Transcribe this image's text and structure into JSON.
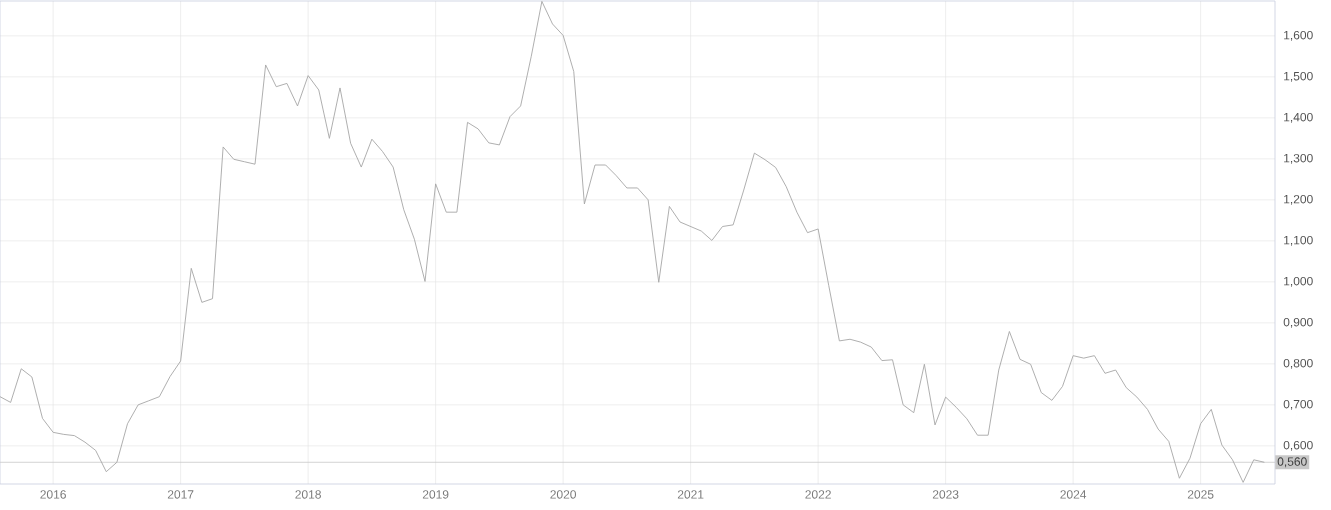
{
  "chart_data": {
    "type": "line",
    "x": [
      "2015-08",
      "2015-09",
      "2015-10",
      "2015-11",
      "2015-12",
      "2016-01",
      "2016-02",
      "2016-03",
      "2016-04",
      "2016-05",
      "2016-06",
      "2016-07",
      "2016-08",
      "2016-09",
      "2016-10",
      "2016-11",
      "2016-12",
      "2017-01",
      "2017-02",
      "2017-03",
      "2017-04",
      "2017-05",
      "2017-06",
      "2017-07",
      "2017-08",
      "2017-09",
      "2017-10",
      "2017-11",
      "2017-12",
      "2018-01",
      "2018-02",
      "2018-03",
      "2018-04",
      "2018-05",
      "2018-06",
      "2018-07",
      "2018-08",
      "2018-09",
      "2018-10",
      "2018-11",
      "2018-12",
      "2019-01",
      "2019-02",
      "2019-03",
      "2019-04",
      "2019-05",
      "2019-06",
      "2019-07",
      "2019-08",
      "2019-09",
      "2019-10",
      "2019-11",
      "2019-12",
      "2020-01",
      "2020-02",
      "2020-03",
      "2020-04",
      "2020-05",
      "2020-06",
      "2020-07",
      "2020-08",
      "2020-09",
      "2020-10",
      "2020-11",
      "2020-12",
      "2021-01",
      "2021-02",
      "2021-03",
      "2021-04",
      "2021-05",
      "2021-06",
      "2021-07",
      "2021-08",
      "2021-09",
      "2021-10",
      "2021-11",
      "2021-12",
      "2022-01",
      "2022-02",
      "2022-03",
      "2022-04",
      "2022-05",
      "2022-06",
      "2022-07",
      "2022-08",
      "2022-09",
      "2022-10",
      "2022-11",
      "2022-12",
      "2023-01",
      "2023-02",
      "2023-03",
      "2023-04",
      "2023-05",
      "2023-06",
      "2023-07",
      "2023-08",
      "2023-09",
      "2023-10",
      "2023-11",
      "2023-12",
      "2024-01",
      "2024-02",
      "2024-03",
      "2024-04",
      "2024-05",
      "2024-06",
      "2024-07",
      "2024-08",
      "2024-09",
      "2024-10",
      "2024-11",
      "2024-12",
      "2025-01",
      "2025-02",
      "2025-03",
      "2025-04",
      "2025-05",
      "2025-06",
      "2025-07"
    ],
    "xlim": [
      "2015-08",
      "2025-08"
    ],
    "xticks": [
      "2016",
      "2017",
      "2018",
      "2019",
      "2020",
      "2021",
      "2022",
      "2023",
      "2024",
      "2025"
    ],
    "ylim": [
      0.507,
      1.685
    ],
    "yticks": [
      {
        "value": 0.6,
        "label": "0,600"
      },
      {
        "value": 0.7,
        "label": "0,700"
      },
      {
        "value": 0.8,
        "label": "0,800"
      },
      {
        "value": 0.9,
        "label": "0,900"
      },
      {
        "value": 1.0,
        "label": "1,000"
      },
      {
        "value": 1.1,
        "label": "1,100"
      },
      {
        "value": 1.2,
        "label": "1,200"
      },
      {
        "value": 1.3,
        "label": "1,300"
      },
      {
        "value": 1.4,
        "label": "1,400"
      },
      {
        "value": 1.5,
        "label": "1,500"
      },
      {
        "value": 1.6,
        "label": "1,600"
      }
    ],
    "grid": true,
    "ref_lines": [
      {
        "axis": "y",
        "value": 0.56,
        "label": "0,560",
        "color": "#c8c8c8"
      }
    ],
    "series": [
      {
        "color": "#a6a6a6",
        "values": [
          0.72,
          0.706,
          0.788,
          0.768,
          0.667,
          0.633,
          0.628,
          0.625,
          0.609,
          0.589,
          0.537,
          0.56,
          0.654,
          0.7,
          0.71,
          0.72,
          0.769,
          0.807,
          1.033,
          0.95,
          0.959,
          1.329,
          1.299,
          1.293,
          1.287,
          1.529,
          1.476,
          1.484,
          1.429,
          1.503,
          1.468,
          1.35,
          1.473,
          1.338,
          1.28,
          1.348,
          1.318,
          1.28,
          1.176,
          1.104,
          1.001,
          1.239,
          1.17,
          1.17,
          1.389,
          1.373,
          1.339,
          1.334,
          1.403,
          1.429,
          1.55,
          1.684,
          1.629,
          1.601,
          1.513,
          1.19,
          1.285,
          1.285,
          1.259,
          1.229,
          1.229,
          1.2,
          0.999,
          1.184,
          1.146,
          1.135,
          1.124,
          1.101,
          1.135,
          1.139,
          1.224,
          1.314,
          1.298,
          1.279,
          1.232,
          1.17,
          1.12,
          1.129,
          0.991,
          0.856,
          0.86,
          0.853,
          0.841,
          0.808,
          0.81,
          0.7,
          0.681,
          0.799,
          0.651,
          0.719,
          0.694,
          0.666,
          0.626,
          0.626,
          0.785,
          0.879,
          0.811,
          0.799,
          0.73,
          0.711,
          0.745,
          0.82,
          0.814,
          0.82,
          0.777,
          0.785,
          0.742,
          0.719,
          0.689,
          0.641,
          0.611,
          0.521,
          0.57,
          0.654,
          0.689,
          0.602,
          0.566,
          0.511,
          0.566,
          0.56
        ]
      }
    ]
  }
}
